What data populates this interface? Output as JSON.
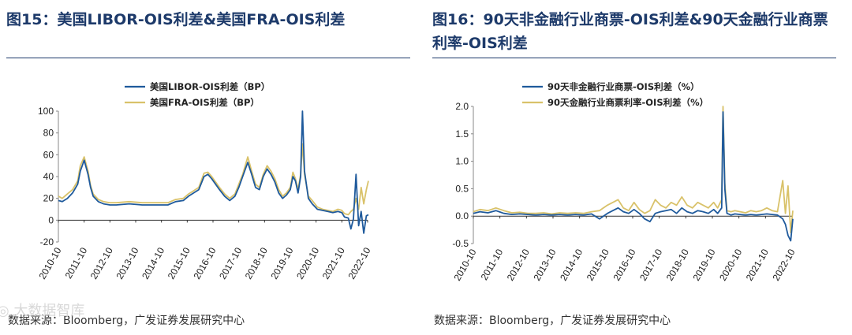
{
  "left": {
    "title": "图15：美国LIBOR-OIS利差&美国FRA-OIS利差",
    "source": "数据来源：Bloomberg，广发证券发展研究中心",
    "chart_data": {
      "type": "line",
      "x_ticks": [
        "2010-10",
        "2011-10",
        "2012-10",
        "2013-10",
        "2014-10",
        "2015-10",
        "2016-10",
        "2017-10",
        "2018-10",
        "2019-10",
        "2020-10",
        "2021-10",
        "2022-10"
      ],
      "y_ticks": [
        "100",
        "80",
        "60",
        "40",
        "20",
        "0",
        "-20"
      ],
      "ylim": [
        -20,
        100
      ],
      "series": [
        {
          "name": "美国LIBOR-OIS利差（BP）",
          "color": "#1f5a9c",
          "x": [
            2010.75,
            2010.9,
            2011.1,
            2011.3,
            2011.5,
            2011.6,
            2011.75,
            2011.9,
            2012.0,
            2012.1,
            2012.3,
            2012.5,
            2012.75,
            2013.0,
            2013.5,
            2014.0,
            2014.5,
            2015.0,
            2015.3,
            2015.6,
            2015.8,
            2016.0,
            2016.2,
            2016.4,
            2016.55,
            2016.7,
            2016.85,
            2017.0,
            2017.2,
            2017.4,
            2017.6,
            2017.75,
            2017.9,
            2018.1,
            2018.25,
            2018.4,
            2018.55,
            2018.7,
            2018.85,
            2019.0,
            2019.15,
            2019.3,
            2019.45,
            2019.6,
            2019.75,
            2019.85,
            2019.95,
            2020.05,
            2020.15,
            2020.22,
            2020.3,
            2020.45,
            2020.6,
            2020.8,
            2021.0,
            2021.2,
            2021.4,
            2021.6,
            2021.75,
            2021.85,
            2022.0,
            2022.1,
            2022.2,
            2022.3,
            2022.4,
            2022.5,
            2022.6,
            2022.7,
            2022.78
          ],
          "y": [
            18,
            17,
            20,
            25,
            33,
            45,
            55,
            42,
            30,
            22,
            17,
            15,
            14,
            14,
            15,
            14,
            14,
            14,
            17,
            18,
            22,
            25,
            28,
            40,
            42,
            38,
            33,
            28,
            22,
            18,
            22,
            30,
            40,
            53,
            42,
            30,
            28,
            40,
            47,
            42,
            35,
            25,
            20,
            23,
            28,
            40,
            36,
            25,
            40,
            100,
            45,
            20,
            15,
            10,
            9,
            8,
            7,
            8,
            7,
            3,
            2,
            -8,
            1,
            42,
            -5,
            8,
            -12,
            4,
            5
          ]
        },
        {
          "name": "美国FRA-OIS利差（BP）",
          "color": "#d9c26a",
          "x": [
            2010.75,
            2010.9,
            2011.1,
            2011.3,
            2011.5,
            2011.6,
            2011.75,
            2011.9,
            2012.0,
            2012.1,
            2012.3,
            2012.5,
            2012.75,
            2013.0,
            2013.5,
            2014.0,
            2014.5,
            2015.0,
            2015.3,
            2015.6,
            2015.8,
            2016.0,
            2016.2,
            2016.4,
            2016.55,
            2016.7,
            2016.85,
            2017.0,
            2017.2,
            2017.4,
            2017.6,
            2017.75,
            2017.9,
            2018.1,
            2018.25,
            2018.4,
            2018.55,
            2018.7,
            2018.85,
            2019.0,
            2019.15,
            2019.3,
            2019.45,
            2019.6,
            2019.75,
            2019.85,
            2019.95,
            2020.05,
            2020.15,
            2020.22,
            2020.3,
            2020.45,
            2020.6,
            2020.8,
            2021.0,
            2021.2,
            2021.4,
            2021.6,
            2021.75,
            2021.85,
            2022.0,
            2022.1,
            2022.2,
            2022.3,
            2022.4,
            2022.5,
            2022.6,
            2022.7,
            2022.78
          ],
          "y": [
            22,
            20,
            24,
            28,
            36,
            50,
            58,
            45,
            32,
            24,
            19,
            17,
            16,
            16,
            17,
            16,
            16,
            16,
            19,
            20,
            24,
            27,
            30,
            43,
            44,
            40,
            35,
            30,
            24,
            20,
            24,
            33,
            42,
            58,
            45,
            33,
            30,
            42,
            50,
            45,
            38,
            28,
            22,
            25,
            30,
            44,
            38,
            28,
            42,
            70,
            42,
            22,
            18,
            12,
            10,
            9,
            8,
            10,
            9,
            6,
            5,
            8,
            10,
            20,
            10,
            30,
            15,
            28,
            36
          ]
        }
      ],
      "legend": "top-left"
    }
  },
  "right": {
    "title": "图16：90天非金融行业商票-OIS利差&90天金融行业商票利率-OIS利差",
    "source": "数据来源：Bloomberg，广发证券发展研究中心",
    "chart_data": {
      "type": "line",
      "x_ticks": [
        "2010-10",
        "2011-10",
        "2012-10",
        "2013-10",
        "2014-10",
        "2015-10",
        "2016-10",
        "2017-10",
        "2018-10",
        "2019-10",
        "2020-10",
        "2021-10",
        "2022-10"
      ],
      "y_ticks": [
        "2.0",
        "1.5",
        "1.0",
        "0.5",
        "0.0",
        "-0.5"
      ],
      "ylim": [
        -0.5,
        2.0
      ],
      "series": [
        {
          "name": "90天非金融行业商票-OIS利差（%）",
          "color": "#1f5a9c",
          "x": [
            2010.75,
            2011.0,
            2011.3,
            2011.6,
            2011.9,
            2012.2,
            2012.5,
            2012.8,
            2013.1,
            2013.4,
            2013.7,
            2014.0,
            2014.3,
            2014.6,
            2014.9,
            2015.2,
            2015.5,
            2015.8,
            2016.0,
            2016.2,
            2016.4,
            2016.6,
            2016.8,
            2017.0,
            2017.2,
            2017.4,
            2017.6,
            2017.8,
            2018.0,
            2018.2,
            2018.4,
            2018.6,
            2018.8,
            2019.0,
            2019.2,
            2019.4,
            2019.6,
            2019.8,
            2019.95,
            2020.1,
            2020.15,
            2020.22,
            2020.3,
            2020.45,
            2020.6,
            2020.8,
            2021.0,
            2021.2,
            2021.4,
            2021.6,
            2021.8,
            2022.0,
            2022.2,
            2022.4,
            2022.5,
            2022.6,
            2022.7,
            2022.78
          ],
          "y": [
            0.05,
            0.08,
            0.06,
            0.1,
            0.05,
            0.03,
            0.04,
            0.03,
            0.02,
            0.03,
            0.02,
            0.03,
            0.02,
            0.03,
            0.02,
            0.04,
            -0.05,
            0.05,
            0.1,
            0.15,
            0.08,
            0.05,
            0.12,
            0.05,
            -0.05,
            -0.1,
            0.05,
            0.08,
            0.1,
            0.12,
            0.05,
            0.15,
            0.08,
            0.05,
            0.1,
            0.08,
            0.05,
            0.12,
            0.05,
            0.15,
            1.9,
            0.5,
            0.05,
            0.02,
            0.04,
            0.03,
            0.02,
            0.03,
            0.02,
            0.03,
            0.04,
            0.03,
            0.02,
            -0.05,
            -0.15,
            -0.35,
            -0.45,
            -0.05
          ]
        },
        {
          "name": "90天金融行业商票利率-OIS利差（%）",
          "color": "#d9c26a",
          "x": [
            2010.75,
            2011.0,
            2011.3,
            2011.6,
            2011.9,
            2012.2,
            2012.5,
            2012.8,
            2013.1,
            2013.4,
            2013.7,
            2014.0,
            2014.3,
            2014.6,
            2014.9,
            2015.2,
            2015.5,
            2015.8,
            2016.0,
            2016.2,
            2016.4,
            2016.6,
            2016.8,
            2017.0,
            2017.2,
            2017.4,
            2017.6,
            2017.8,
            2018.0,
            2018.2,
            2018.4,
            2018.6,
            2018.8,
            2019.0,
            2019.2,
            2019.4,
            2019.6,
            2019.8,
            2019.95,
            2020.1,
            2020.15,
            2020.22,
            2020.3,
            2020.45,
            2020.6,
            2020.8,
            2021.0,
            2021.2,
            2021.4,
            2021.6,
            2021.8,
            2022.0,
            2022.2,
            2022.4,
            2022.5,
            2022.6,
            2022.7,
            2022.78
          ],
          "y": [
            0.08,
            0.12,
            0.1,
            0.15,
            0.1,
            0.06,
            0.07,
            0.05,
            0.05,
            0.06,
            0.04,
            0.06,
            0.05,
            0.06,
            0.05,
            0.08,
            0.1,
            0.2,
            0.25,
            0.3,
            0.15,
            0.1,
            0.25,
            0.12,
            0.05,
            0.1,
            0.3,
            0.2,
            0.15,
            0.25,
            0.2,
            0.35,
            0.2,
            0.15,
            0.25,
            0.2,
            0.15,
            0.25,
            0.15,
            0.3,
            2.0,
            0.6,
            0.1,
            0.08,
            0.1,
            0.08,
            0.06,
            0.1,
            0.08,
            0.1,
            0.15,
            0.1,
            0.08,
            0.65,
            0.05,
            0.55,
            -0.3,
            0.1
          ]
        }
      ],
      "legend": "top-left"
    }
  }
}
